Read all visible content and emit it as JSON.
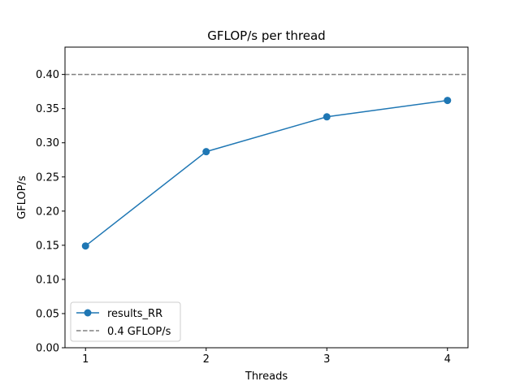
{
  "chart_data": {
    "type": "line",
    "title": "GFLOP/s per thread",
    "xlabel": "Threads",
    "ylabel": "GFLOP/s",
    "x": [
      1,
      2,
      3,
      4
    ],
    "xticks": [
      "1",
      "2",
      "3",
      "4"
    ],
    "xlim": [
      0.83,
      4.17
    ],
    "ylim": [
      0,
      0.44
    ],
    "yticks": [
      "0.00",
      "0.05",
      "0.10",
      "0.15",
      "0.20",
      "0.25",
      "0.30",
      "0.35",
      "0.40"
    ],
    "series": [
      {
        "name": "results_RR",
        "values": [
          0.149,
          0.287,
          0.338,
          0.362
        ],
        "color": "#1f77b4",
        "marker": "circle",
        "style": "solid"
      }
    ],
    "reference_lines": [
      {
        "name": "0.4 GFLOP/s",
        "y": 0.4,
        "color": "#808080",
        "style": "dashed"
      }
    ],
    "legend": {
      "position": "lower-left"
    },
    "grid": false
  }
}
